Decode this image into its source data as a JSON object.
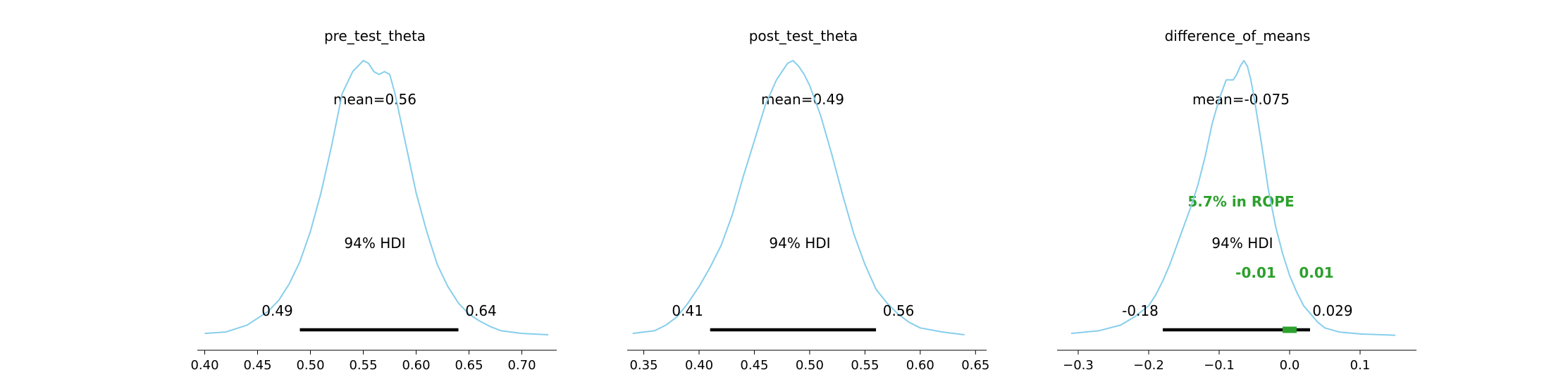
{
  "colors": {
    "kde": "#87ceeb",
    "hdi": "#000000",
    "rope": "#2ca02c",
    "axis": "#000000"
  },
  "chart_data": [
    {
      "type": "area",
      "title": "pre_test_theta",
      "mean_label": "mean=0.56",
      "hdi_label": "94% HDI",
      "hdi": [
        0.49,
        0.64
      ],
      "hdi_low_label": "0.49",
      "hdi_high_label": "0.64",
      "xlim": [
        0.393,
        0.733
      ],
      "xticks": [
        0.4,
        0.45,
        0.5,
        0.55,
        0.6,
        0.65,
        0.7
      ],
      "xtick_labels": [
        "0.40",
        "0.45",
        "0.50",
        "0.55",
        "0.60",
        "0.65",
        "0.70"
      ],
      "kde": {
        "x": [
          0.4,
          0.42,
          0.44,
          0.46,
          0.47,
          0.48,
          0.49,
          0.5,
          0.51,
          0.52,
          0.53,
          0.54,
          0.55,
          0.555,
          0.56,
          0.565,
          0.57,
          0.575,
          0.58,
          0.59,
          0.6,
          0.61,
          0.62,
          0.63,
          0.64,
          0.65,
          0.66,
          0.67,
          0.68,
          0.7,
          0.725
        ],
        "y": [
          0.01,
          0.015,
          0.04,
          0.09,
          0.13,
          0.19,
          0.27,
          0.38,
          0.52,
          0.69,
          0.88,
          0.96,
          1.0,
          0.99,
          0.96,
          0.95,
          0.96,
          0.95,
          0.88,
          0.7,
          0.52,
          0.38,
          0.26,
          0.18,
          0.12,
          0.08,
          0.055,
          0.035,
          0.02,
          0.01,
          0.005
        ]
      }
    },
    {
      "type": "area",
      "title": "post_test_theta",
      "mean_label": "mean=0.49",
      "hdi_label": "94% HDI",
      "hdi": [
        0.41,
        0.56
      ],
      "hdi_low_label": "0.41",
      "hdi_high_label": "0.56",
      "xlim": [
        0.335,
        0.66
      ],
      "xticks": [
        0.35,
        0.4,
        0.45,
        0.5,
        0.55,
        0.6,
        0.65
      ],
      "xtick_labels": [
        "0.35",
        "0.40",
        "0.45",
        "0.50",
        "0.55",
        "0.60",
        "0.65"
      ],
      "kde": {
        "x": [
          0.34,
          0.36,
          0.37,
          0.38,
          0.39,
          0.4,
          0.41,
          0.42,
          0.43,
          0.44,
          0.45,
          0.46,
          0.47,
          0.48,
          0.485,
          0.49,
          0.495,
          0.5,
          0.51,
          0.52,
          0.53,
          0.54,
          0.55,
          0.56,
          0.57,
          0.58,
          0.59,
          0.6,
          0.62,
          0.64
        ],
        "y": [
          0.01,
          0.02,
          0.04,
          0.07,
          0.12,
          0.18,
          0.25,
          0.33,
          0.44,
          0.58,
          0.71,
          0.84,
          0.93,
          0.99,
          1.0,
          0.98,
          0.95,
          0.91,
          0.8,
          0.66,
          0.51,
          0.37,
          0.26,
          0.17,
          0.12,
          0.08,
          0.05,
          0.03,
          0.015,
          0.005
        ]
      }
    },
    {
      "type": "area",
      "title": "difference_of_means",
      "mean_label": "mean=-0.075",
      "hdi_label": "94% HDI",
      "hdi": [
        -0.18,
        0.029
      ],
      "hdi_low_label": "-0.18",
      "hdi_high_label": "0.029",
      "rope": [
        -0.01,
        0.01
      ],
      "rope_low_label": "-0.01",
      "rope_high_label": "0.01",
      "rope_label": "5.7% in ROPE",
      "xlim": [
        -0.33,
        0.18
      ],
      "xticks": [
        -0.3,
        -0.2,
        -0.1,
        0.0,
        0.1
      ],
      "xtick_labels": [
        "−0.3",
        "−0.2",
        "−0.1",
        "0.0",
        "0.1"
      ],
      "kde": {
        "x": [
          -0.31,
          -0.27,
          -0.24,
          -0.22,
          -0.2,
          -0.19,
          -0.18,
          -0.17,
          -0.16,
          -0.15,
          -0.14,
          -0.13,
          -0.12,
          -0.11,
          -0.1,
          -0.09,
          -0.08,
          -0.075,
          -0.07,
          -0.065,
          -0.06,
          -0.055,
          -0.05,
          -0.04,
          -0.03,
          -0.02,
          -0.01,
          0.0,
          0.01,
          0.02,
          0.03,
          0.04,
          0.05,
          0.07,
          0.1,
          0.15
        ],
        "y": [
          0.01,
          0.02,
          0.04,
          0.07,
          0.11,
          0.15,
          0.2,
          0.26,
          0.33,
          0.4,
          0.47,
          0.55,
          0.65,
          0.77,
          0.86,
          0.93,
          0.93,
          0.95,
          0.98,
          1.0,
          0.98,
          0.93,
          0.86,
          0.7,
          0.53,
          0.4,
          0.3,
          0.22,
          0.16,
          0.11,
          0.08,
          0.05,
          0.03,
          0.015,
          0.008,
          0.003
        ]
      }
    }
  ]
}
